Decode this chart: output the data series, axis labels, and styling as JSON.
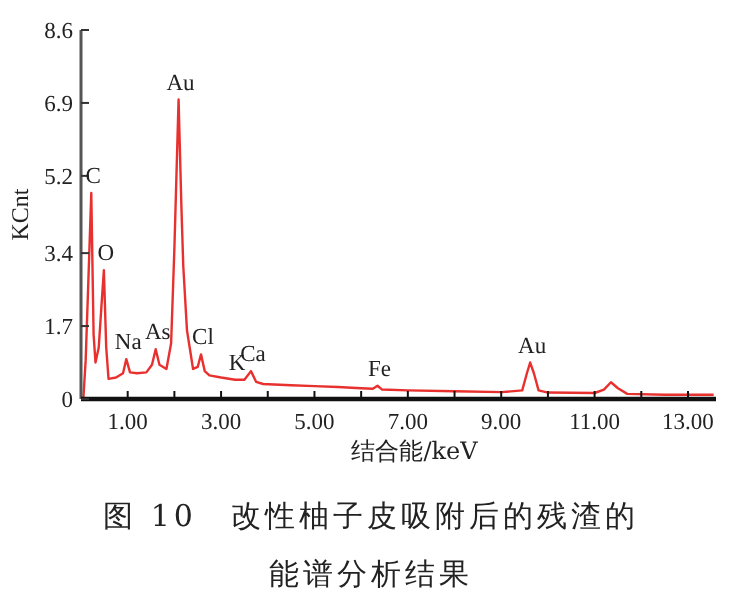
{
  "chart_data": {
    "type": "line",
    "title": "图 10　改性柚子皮吸附后的残渣的能谱分析结果",
    "xlabel": "结合能/keV",
    "ylabel": "KCnt",
    "xlim": [
      0,
      13.6
    ],
    "ylim": [
      0,
      8.6
    ],
    "xticks": [
      {
        "value": 1,
        "label": "1.00"
      },
      {
        "value": 2,
        "label": null
      },
      {
        "value": 3,
        "label": "3.00"
      },
      {
        "value": 4,
        "label": null
      },
      {
        "value": 5,
        "label": "5.00"
      },
      {
        "value": 6,
        "label": null
      },
      {
        "value": 7,
        "label": "7.00"
      },
      {
        "value": 8,
        "label": null
      },
      {
        "value": 9,
        "label": "9.00"
      },
      {
        "value": 10,
        "label": null
      },
      {
        "value": 11,
        "label": "11.00"
      },
      {
        "value": 12,
        "label": null
      },
      {
        "value": 13,
        "label": "13.00"
      }
    ],
    "yticks": [
      0,
      1.7,
      3.4,
      5.2,
      6.9,
      8.6
    ],
    "series": [
      {
        "color": "#e8312f",
        "x": [
          0.05,
          0.1,
          0.15,
          0.22,
          0.27,
          0.31,
          0.38,
          0.44,
          0.49,
          0.54,
          0.59,
          0.75,
          0.9,
          0.97,
          1.05,
          1.2,
          1.4,
          1.52,
          1.6,
          1.68,
          1.83,
          1.93,
          2.0,
          2.09,
          2.15,
          2.19,
          2.27,
          2.4,
          2.5,
          2.57,
          2.65,
          2.75,
          3.0,
          3.3,
          3.5,
          3.64,
          3.75,
          3.9,
          4.5,
          5.0,
          5.5,
          6.0,
          6.25,
          6.35,
          6.45,
          7.0,
          8.0,
          9.0,
          9.45,
          9.55,
          9.62,
          9.7,
          9.8,
          10.0,
          11.0,
          11.2,
          11.35,
          11.5,
          11.7,
          12.5,
          13.0,
          13.55
        ],
        "values": [
          0,
          0.9,
          2.5,
          4.8,
          1.5,
          0.85,
          1.2,
          2.2,
          3.0,
          1.2,
          0.47,
          0.5,
          0.6,
          0.93,
          0.62,
          0.6,
          0.62,
          0.8,
          1.16,
          0.8,
          0.7,
          1.3,
          3.5,
          6.98,
          4.5,
          3.1,
          1.6,
          0.7,
          0.75,
          1.04,
          0.65,
          0.55,
          0.5,
          0.45,
          0.45,
          0.65,
          0.4,
          0.35,
          0.32,
          0.3,
          0.28,
          0.25,
          0.24,
          0.31,
          0.22,
          0.2,
          0.18,
          0.16,
          0.2,
          0.6,
          0.85,
          0.6,
          0.2,
          0.15,
          0.14,
          0.22,
          0.39,
          0.25,
          0.12,
          0.1,
          0.1,
          0.1
        ]
      }
    ],
    "annotations": [
      {
        "text": "C",
        "x": 0.22,
        "y": 4.8
      },
      {
        "text": "O",
        "x": 0.49,
        "y": 3.0
      },
      {
        "text": "Na",
        "x": 0.97,
        "y": 0.93
      },
      {
        "text": "As",
        "x": 1.6,
        "y": 1.16
      },
      {
        "text": "Au",
        "x": 2.09,
        "y": 6.98
      },
      {
        "text": "Cl",
        "x": 2.57,
        "y": 1.04
      },
      {
        "text": "K",
        "x": 3.3,
        "y": 0.45
      },
      {
        "text": "Ca",
        "x": 3.64,
        "y": 0.65
      },
      {
        "text": "Fe",
        "x": 6.35,
        "y": 0.31
      },
      {
        "text": "Au",
        "x": 9.62,
        "y": 0.85
      }
    ]
  }
}
